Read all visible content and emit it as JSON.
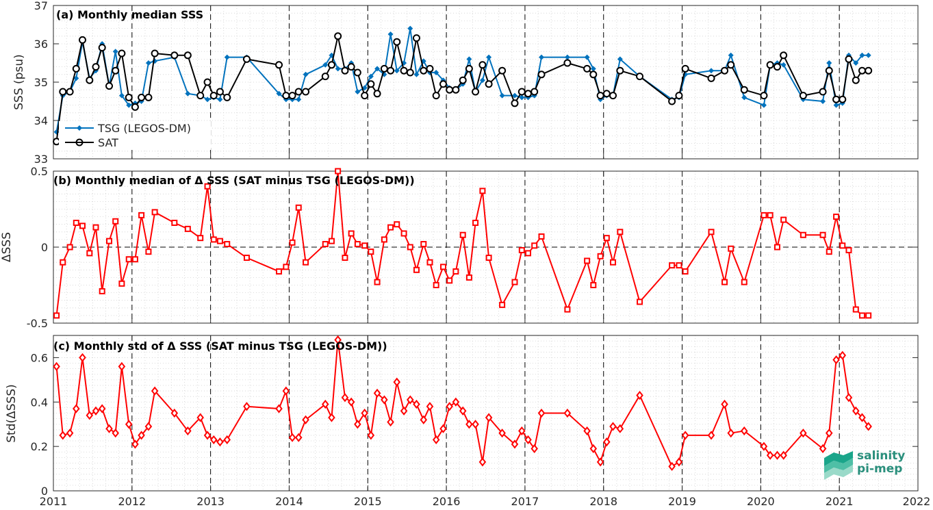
{
  "x_ticks": [
    "2011",
    "2012",
    "2013",
    "2014",
    "2015",
    "2016",
    "2017",
    "2018",
    "2019",
    "2020",
    "2021",
    "2022"
  ],
  "logo": {
    "line1": "salinity",
    "line2": "pi-mep"
  },
  "colors": {
    "tsg": "#0072BD",
    "sat": "#000000",
    "delta": "#FF0000",
    "grid": "#d0d0d0"
  },
  "chart_data": [
    {
      "type": "line",
      "title": "(a) Monthly median SSS",
      "ylabel": "SSS (psu)",
      "xlim": [
        2011,
        2022
      ],
      "ylim": [
        33,
        37
      ],
      "yticks": [
        33,
        34,
        35,
        36,
        37
      ],
      "grid": true,
      "legend": "left",
      "series": [
        {
          "name": "TSG (LEGOS-DM)",
          "marker": "diamond",
          "x": [
            2011.04,
            2011.12,
            2011.21,
            2011.29,
            2011.37,
            2011.46,
            2011.54,
            2011.62,
            2011.71,
            2011.79,
            2011.87,
            2011.96,
            2012.04,
            2012.12,
            2012.21,
            2012.29,
            2012.54,
            2012.71,
            2012.87,
            2012.96,
            2013.04,
            2013.12,
            2013.21,
            2013.46,
            2013.87,
            2013.96,
            2014.04,
            2014.12,
            2014.21,
            2014.46,
            2014.54,
            2014.62,
            2014.71,
            2014.79,
            2014.87,
            2014.96,
            2015.04,
            2015.12,
            2015.21,
            2015.29,
            2015.37,
            2015.46,
            2015.54,
            2015.62,
            2015.71,
            2015.79,
            2015.87,
            2015.96,
            2016.04,
            2016.12,
            2016.21,
            2016.29,
            2016.37,
            2016.46,
            2016.54,
            2016.71,
            2016.87,
            2016.96,
            2017.04,
            2017.12,
            2017.21,
            2017.54,
            2017.79,
            2017.87,
            2017.96,
            2018.04,
            2018.12,
            2018.21,
            2018.46,
            2018.87,
            2018.96,
            2019.04,
            2019.37,
            2019.54,
            2019.62,
            2019.79,
            2020.04,
            2020.12,
            2020.21,
            2020.29,
            2020.54,
            2020.79,
            2020.87,
            2020.96,
            2021.04,
            2021.12,
            2021.21,
            2021.29,
            2021.37
          ],
          "y": [
            33.7,
            34.65,
            34.75,
            35.1,
            36.05,
            35.1,
            35.3,
            36.0,
            34.9,
            35.8,
            34.65,
            34.4,
            34.45,
            34.5,
            35.5,
            35.55,
            35.65,
            34.7,
            34.65,
            34.55,
            34.6,
            34.55,
            35.65,
            35.65,
            34.7,
            34.55,
            34.55,
            34.55,
            35.2,
            35.45,
            35.7,
            35.35,
            35.35,
            35.5,
            34.75,
            34.85,
            35.15,
            35.35,
            35.2,
            36.25,
            35.3,
            35.5,
            36.4,
            35.2,
            35.55,
            35.25,
            35.25,
            35.05,
            34.85,
            34.8,
            34.95,
            35.6,
            34.75,
            35.05,
            35.65,
            34.65,
            34.65,
            34.6,
            34.6,
            34.65,
            35.65,
            35.65,
            35.65,
            35.35,
            34.55,
            34.65,
            34.65,
            35.6,
            35.15,
            34.55,
            34.6,
            35.2,
            35.3,
            35.3,
            35.7,
            34.6,
            34.4,
            35.45,
            35.5,
            35.45,
            34.55,
            34.5,
            35.5,
            34.4,
            34.45,
            35.7,
            35.5,
            35.7,
            35.7
          ]
        },
        {
          "name": "SAT",
          "marker": "circle",
          "x": [
            2011.04,
            2011.12,
            2011.21,
            2011.29,
            2011.37,
            2011.46,
            2011.54,
            2011.62,
            2011.71,
            2011.79,
            2011.87,
            2011.96,
            2012.04,
            2012.12,
            2012.21,
            2012.29,
            2012.54,
            2012.71,
            2012.87,
            2012.96,
            2013.04,
            2013.12,
            2013.21,
            2013.46,
            2013.87,
            2013.96,
            2014.04,
            2014.12,
            2014.21,
            2014.46,
            2014.54,
            2014.62,
            2014.71,
            2014.79,
            2014.87,
            2014.96,
            2015.04,
            2015.12,
            2015.21,
            2015.29,
            2015.37,
            2015.46,
            2015.54,
            2015.62,
            2015.71,
            2015.79,
            2015.87,
            2015.96,
            2016.04,
            2016.12,
            2016.21,
            2016.29,
            2016.37,
            2016.46,
            2016.54,
            2016.71,
            2016.87,
            2016.96,
            2017.04,
            2017.12,
            2017.21,
            2017.54,
            2017.79,
            2017.87,
            2017.96,
            2018.04,
            2018.12,
            2018.21,
            2018.46,
            2018.87,
            2018.96,
            2019.04,
            2019.37,
            2019.54,
            2019.62,
            2019.79,
            2020.04,
            2020.12,
            2020.21,
            2020.29,
            2020.54,
            2020.79,
            2020.87,
            2020.96,
            2021.04,
            2021.12,
            2021.21,
            2021.29,
            2021.37
          ],
          "y": [
            33.45,
            34.75,
            34.75,
            35.35,
            36.1,
            35.05,
            35.4,
            35.9,
            34.9,
            35.3,
            35.75,
            34.6,
            34.35,
            34.6,
            34.6,
            35.75,
            35.7,
            35.7,
            34.65,
            35.0,
            34.65,
            34.75,
            34.6,
            35.6,
            35.45,
            34.65,
            34.65,
            34.75,
            34.75,
            35.15,
            35.45,
            36.2,
            35.3,
            35.4,
            35.25,
            34.65,
            34.95,
            34.7,
            35.35,
            35.3,
            36.05,
            35.3,
            35.25,
            36.15,
            35.3,
            35.35,
            34.65,
            34.95,
            34.8,
            34.8,
            35.05,
            35.35,
            34.75,
            35.45,
            34.95,
            35.3,
            34.45,
            34.75,
            34.7,
            34.75,
            35.2,
            35.5,
            35.35,
            35.2,
            34.65,
            34.7,
            34.65,
            35.3,
            35.15,
            34.5,
            34.65,
            35.35,
            35.1,
            35.3,
            35.45,
            34.8,
            34.65,
            35.45,
            35.4,
            35.7,
            34.65,
            34.75,
            35.3,
            34.55,
            34.55,
            35.6,
            35.05,
            35.3,
            35.3
          ]
        }
      ]
    },
    {
      "type": "line",
      "title": "(b) Monthly median of Δ SSS (SAT minus TSG (LEGOS-DM))",
      "ylabel": "ΔSSS",
      "xlim": [
        2011,
        2022
      ],
      "ylim": [
        -0.5,
        0.5
      ],
      "yticks": [
        -0.5,
        0,
        0.5
      ],
      "ytick_labels": [
        "-0.5",
        "0",
        "0.5"
      ],
      "grid": true,
      "zero_line": true,
      "series": [
        {
          "marker": "square",
          "x": [
            2011.04,
            2011.12,
            2011.21,
            2011.29,
            2011.37,
            2011.46,
            2011.54,
            2011.62,
            2011.71,
            2011.79,
            2011.87,
            2011.96,
            2012.04,
            2012.12,
            2012.21,
            2012.29,
            2012.54,
            2012.71,
            2012.87,
            2012.96,
            2013.04,
            2013.12,
            2013.21,
            2013.46,
            2013.87,
            2013.96,
            2014.04,
            2014.12,
            2014.21,
            2014.46,
            2014.54,
            2014.62,
            2014.71,
            2014.79,
            2014.87,
            2014.96,
            2015.04,
            2015.12,
            2015.21,
            2015.29,
            2015.37,
            2015.46,
            2015.54,
            2015.62,
            2015.71,
            2015.79,
            2015.87,
            2015.96,
            2016.04,
            2016.12,
            2016.21,
            2016.29,
            2016.37,
            2016.46,
            2016.54,
            2016.71,
            2016.87,
            2016.96,
            2017.04,
            2017.12,
            2017.21,
            2017.54,
            2017.79,
            2017.87,
            2017.96,
            2018.04,
            2018.12,
            2018.21,
            2018.46,
            2018.87,
            2018.96,
            2019.04,
            2019.37,
            2019.54,
            2019.62,
            2019.79,
            2020.04,
            2020.12,
            2020.21,
            2020.29,
            2020.54,
            2020.79,
            2020.87,
            2020.96,
            2021.04,
            2021.12,
            2021.21,
            2021.29,
            2021.37
          ],
          "y": [
            -0.45,
            -0.1,
            0.0,
            0.16,
            0.14,
            -0.04,
            0.13,
            -0.29,
            0.04,
            0.17,
            -0.24,
            -0.08,
            -0.08,
            0.21,
            -0.03,
            0.23,
            0.16,
            0.12,
            0.06,
            0.4,
            0.05,
            0.04,
            0.02,
            -0.07,
            -0.16,
            -0.13,
            0.03,
            0.26,
            -0.1,
            0.02,
            0.04,
            0.5,
            -0.07,
            0.09,
            0.02,
            0.01,
            -0.03,
            -0.23,
            0.05,
            0.13,
            0.15,
            0.09,
            0.0,
            -0.15,
            0.02,
            -0.1,
            -0.25,
            -0.13,
            -0.22,
            -0.16,
            0.08,
            -0.2,
            0.16,
            0.37,
            -0.07,
            -0.38,
            -0.23,
            -0.02,
            -0.04,
            0.01,
            0.07,
            -0.41,
            -0.09,
            -0.25,
            -0.06,
            0.06,
            -0.1,
            0.1,
            -0.36,
            -0.12,
            -0.12,
            -0.16,
            0.1,
            -0.23,
            -0.01,
            -0.23,
            0.21,
            0.21,
            0.0,
            0.18,
            0.08,
            0.08,
            -0.03,
            0.2,
            0.01,
            -0.02,
            -0.41,
            -0.45,
            -0.45
          ]
        }
      ]
    },
    {
      "type": "line",
      "title": "(c) Monthly std of Δ SSS (SAT minus TSG (LEGOS-DM))",
      "ylabel": "Std(ΔSSS)",
      "xlim": [
        2011,
        2022
      ],
      "ylim": [
        0,
        0.7
      ],
      "yticks": [
        0,
        0.2,
        0.4,
        0.6
      ],
      "ytick_labels": [
        "0",
        "0.2",
        "0.4",
        "0.6"
      ],
      "xlabel_ticks": [
        "2011",
        "2012",
        "2013",
        "2014",
        "2015",
        "2016",
        "2017",
        "2018",
        "2019",
        "2020",
        "2021",
        "2022"
      ],
      "grid": true,
      "series": [
        {
          "marker": "diamond",
          "x": [
            2011.04,
            2011.12,
            2011.21,
            2011.29,
            2011.37,
            2011.46,
            2011.54,
            2011.62,
            2011.71,
            2011.79,
            2011.87,
            2011.96,
            2012.04,
            2012.12,
            2012.21,
            2012.29,
            2012.54,
            2012.71,
            2012.87,
            2012.96,
            2013.04,
            2013.12,
            2013.21,
            2013.46,
            2013.87,
            2013.96,
            2014.04,
            2014.12,
            2014.21,
            2014.46,
            2014.54,
            2014.62,
            2014.71,
            2014.79,
            2014.87,
            2014.96,
            2015.04,
            2015.12,
            2015.21,
            2015.29,
            2015.37,
            2015.46,
            2015.54,
            2015.62,
            2015.71,
            2015.79,
            2015.87,
            2015.96,
            2016.04,
            2016.12,
            2016.21,
            2016.29,
            2016.37,
            2016.46,
            2016.54,
            2016.71,
            2016.87,
            2016.96,
            2017.04,
            2017.12,
            2017.21,
            2017.54,
            2017.79,
            2017.87,
            2017.96,
            2018.04,
            2018.12,
            2018.21,
            2018.46,
            2018.87,
            2018.96,
            2019.04,
            2019.37,
            2019.54,
            2019.62,
            2019.79,
            2020.04,
            2020.12,
            2020.21,
            2020.29,
            2020.54,
            2020.79,
            2020.87,
            2020.96,
            2021.04,
            2021.12,
            2021.21,
            2021.29,
            2021.37
          ],
          "y": [
            0.56,
            0.25,
            0.26,
            0.37,
            0.6,
            0.34,
            0.36,
            0.37,
            0.28,
            0.26,
            0.56,
            0.3,
            0.21,
            0.25,
            0.29,
            0.45,
            0.35,
            0.27,
            0.33,
            0.25,
            0.23,
            0.22,
            0.23,
            0.38,
            0.37,
            0.45,
            0.24,
            0.24,
            0.32,
            0.39,
            0.33,
            0.68,
            0.42,
            0.4,
            0.3,
            0.35,
            0.25,
            0.44,
            0.41,
            0.31,
            0.49,
            0.36,
            0.41,
            0.39,
            0.32,
            0.38,
            0.23,
            0.28,
            0.38,
            0.4,
            0.36,
            0.3,
            0.3,
            0.13,
            0.33,
            0.26,
            0.21,
            0.27,
            0.23,
            0.19,
            0.35,
            0.35,
            0.27,
            0.19,
            0.13,
            0.22,
            0.29,
            0.28,
            0.43,
            0.11,
            0.13,
            0.25,
            0.25,
            0.39,
            0.26,
            0.27,
            0.2,
            0.16,
            0.16,
            0.16,
            0.26,
            0.19,
            0.26,
            0.59,
            0.61,
            0.42,
            0.36,
            0.33,
            0.29
          ]
        }
      ]
    }
  ]
}
